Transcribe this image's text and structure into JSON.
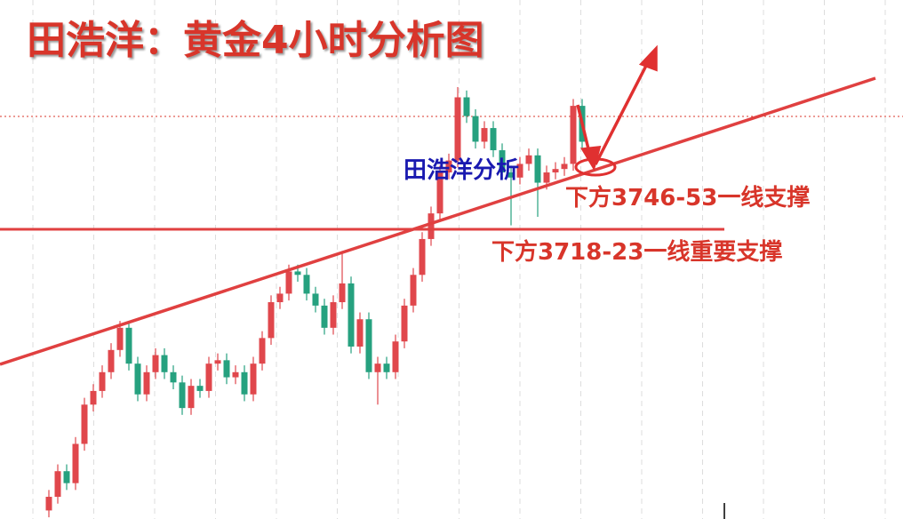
{
  "chart_data": {
    "type": "candlestick",
    "title": "田浩洋：黄金4小时分析图",
    "annotations": [
      "田浩洋分析",
      "下方3746-53一线支撑",
      "下方3718-23一线重要支撑"
    ],
    "up_color": "#e0474c",
    "down_color": "#26a17f",
    "grid": true,
    "ylim": [
      3550,
      3854
    ],
    "open": [
      3555,
      3563,
      3578,
      3571,
      3594,
      3617,
      3625,
      3636,
      3649,
      3662,
      3641,
      3623,
      3636,
      3646,
      3636,
      3630,
      3615,
      3628,
      3625,
      3641,
      3643,
      3633,
      3636,
      3623,
      3641,
      3656,
      3677,
      3682,
      3695,
      3693,
      3682,
      3675,
      3662,
      3677,
      3688,
      3651,
      3667,
      3636,
      3641,
      3636,
      3654,
      3675,
      3693,
      3714,
      3729,
      3753,
      3760,
      3797,
      3786,
      3771,
      3779,
      3766,
      3753,
      3750,
      3758,
      3763,
      3747,
      3753,
      3755,
      3758,
      3792
    ],
    "high": [
      3567,
      3582,
      3582,
      3598,
      3621,
      3629,
      3640,
      3653,
      3666,
      3666,
      3645,
      3640,
      3650,
      3650,
      3640,
      3634,
      3632,
      3632,
      3645,
      3647,
      3647,
      3640,
      3640,
      3645,
      3660,
      3681,
      3686,
      3699,
      3699,
      3697,
      3686,
      3679,
      3681,
      3707,
      3692,
      3671,
      3671,
      3645,
      3645,
      3658,
      3679,
      3697,
      3718,
      3733,
      3757,
      3764,
      3803,
      3801,
      3790,
      3783,
      3783,
      3770,
      3757,
      3762,
      3767,
      3767,
      3757,
      3759,
      3762,
      3796,
      3796
    ],
    "low": [
      3551,
      3559,
      3567,
      3567,
      3590,
      3613,
      3621,
      3632,
      3645,
      3637,
      3619,
      3619,
      3632,
      3632,
      3626,
      3611,
      3611,
      3621,
      3621,
      3637,
      3629,
      3629,
      3619,
      3619,
      3637,
      3652,
      3673,
      3678,
      3689,
      3678,
      3671,
      3658,
      3658,
      3673,
      3647,
      3647,
      3632,
      3617,
      3632,
      3632,
      3650,
      3671,
      3689,
      3710,
      3725,
      3749,
      3756,
      3782,
      3767,
      3767,
      3762,
      3749,
      3722,
      3746,
      3754,
      3727,
      3743,
      3749,
      3751,
      3754,
      3767
    ],
    "close": [
      3563,
      3578,
      3571,
      3594,
      3617,
      3625,
      3636,
      3649,
      3662,
      3641,
      3623,
      3636,
      3646,
      3636,
      3630,
      3615,
      3628,
      3625,
      3641,
      3643,
      3633,
      3636,
      3623,
      3641,
      3656,
      3677,
      3682,
      3695,
      3693,
      3682,
      3675,
      3662,
      3677,
      3688,
      3651,
      3667,
      3636,
      3641,
      3636,
      3654,
      3675,
      3693,
      3714,
      3729,
      3753,
      3760,
      3797,
      3786,
      3771,
      3779,
      3766,
      3753,
      3750,
      3758,
      3763,
      3747,
      3753,
      3755,
      3758,
      3792,
      3771
    ]
  }
}
